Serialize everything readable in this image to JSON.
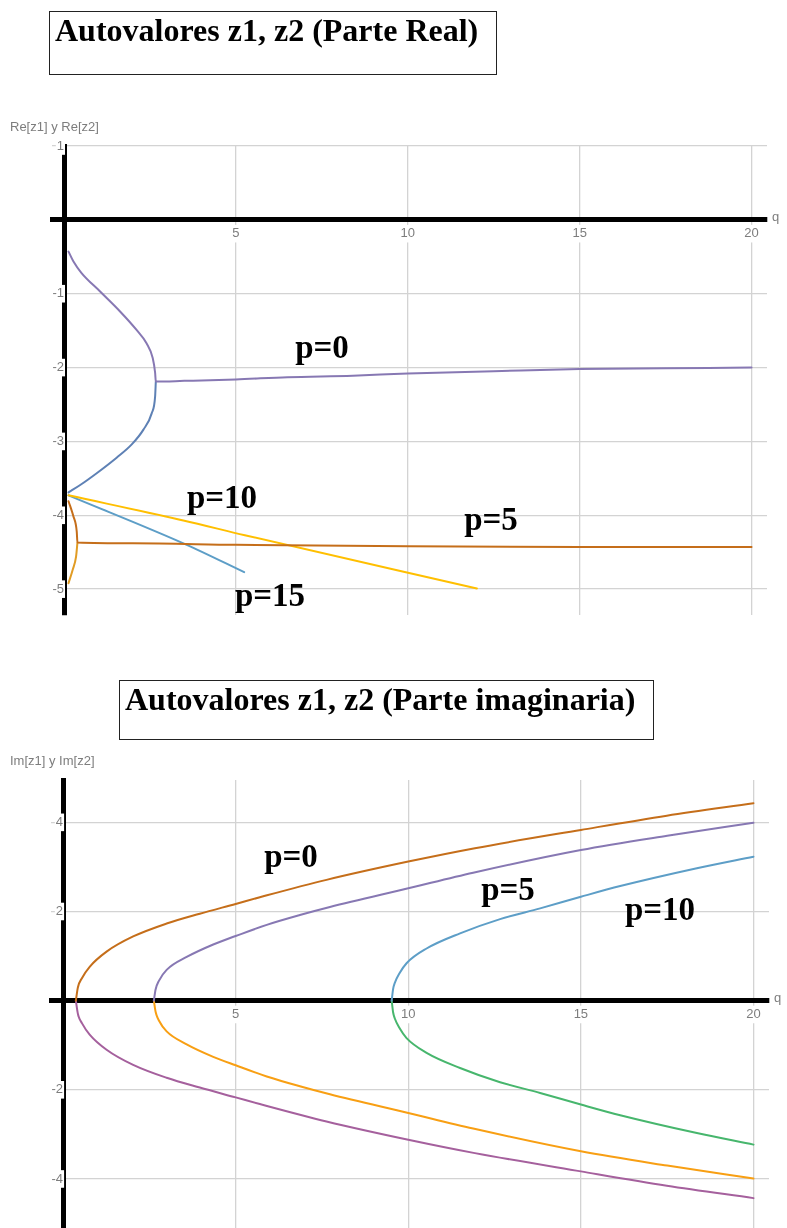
{
  "chart_data": [
    {
      "type": "line",
      "title": "Autovalores z1, z2 (Parte Real)",
      "xlabel": "q",
      "ylabel": "Re[z1] y Re[z2]",
      "xlim": [
        -0.35,
        20.45
      ],
      "ylim": [
        -5.35,
        1
      ],
      "xticks": [
        5,
        10,
        15,
        20
      ],
      "yticks": [
        -5,
        -4,
        -3,
        -2,
        -1,
        1
      ],
      "grid": true,
      "series": [
        {
          "color": "#8778b3",
          "x": [
            0.13,
            0.27,
            0.51,
            1.05,
            1.63,
            2.11,
            2.4,
            2.58,
            2.65,
            2.67,
            3.5,
            5,
            6.5,
            8.4,
            10,
            12.5,
            15,
            17.5,
            20
          ],
          "values": [
            -0.43,
            -0.56,
            -0.72,
            -0.97,
            -1.24,
            -1.49,
            -1.67,
            -1.87,
            -2.07,
            -2.19,
            -2.18,
            -2.16,
            -2.13,
            -2.11,
            -2.08,
            -2.05,
            -2.02,
            -2.01,
            -2.0
          ]
        },
        {
          "color": "#5e81b5",
          "x": [
            0.13,
            0.47,
            0.95,
            1.53,
            1.97,
            2.31,
            2.55,
            2.65,
            2.67
          ],
          "values": [
            -3.69,
            -3.59,
            -3.43,
            -3.22,
            -3.04,
            -2.84,
            -2.62,
            -2.39,
            -2.19
          ]
        },
        {
          "color": "#c56e1a",
          "x": [
            0.13,
            0.27,
            0.37,
            0.39,
            2,
            5,
            10,
            15,
            20
          ],
          "values": [
            -3.81,
            -4.01,
            -4.22,
            -4.37,
            -4.38,
            -4.4,
            -4.42,
            -4.43,
            -4.43
          ]
        },
        {
          "color": "#e19c24",
          "x": [
            0.13,
            0.25,
            0.35,
            0.39
          ],
          "values": [
            -4.92,
            -4.74,
            -4.56,
            -4.37
          ]
        },
        {
          "color": "#ffbf00",
          "x": [
            0.13,
            3.47,
            5.26,
            12.01
          ],
          "values": [
            -3.73,
            -4.07,
            -4.27,
            -4.99
          ]
        },
        {
          "color": "#5d9ec7",
          "x": [
            0.13,
            3.57,
            5.24
          ],
          "values": [
            -3.73,
            -4.4,
            -4.77
          ]
        }
      ],
      "annotations": [
        "p=0",
        "p=10",
        "p=5",
        "p=15"
      ]
    },
    {
      "type": "line",
      "title": "Autovalores z1, z2 (Parte imaginaria)",
      "xlabel": "q",
      "ylabel": "Im[z1] y Im[z2]",
      "xlim": [
        -0.35,
        20.45
      ],
      "ylim": [
        -5.1,
        4.95
      ],
      "xticks": [
        5,
        10,
        15,
        20
      ],
      "yticks": [
        -4,
        -2,
        2,
        4
      ],
      "grid": true,
      "series": [
        {
          "color": "#c56e1a",
          "x": [
            0.37,
            0.43,
            0.55,
            0.77,
            1.26,
            2.03,
            3.0,
            3.96,
            5.0,
            5.7,
            7.63,
            10,
            11.93,
            15,
            17.49,
            20
          ],
          "values": [
            0,
            0.3,
            0.51,
            0.76,
            1.1,
            1.44,
            1.73,
            1.95,
            2.17,
            2.32,
            2.71,
            3.12,
            3.42,
            3.83,
            4.15,
            4.43
          ]
        },
        {
          "color": "#a5609d",
          "x": [
            0.37,
            0.43,
            0.55,
            0.77,
            1.26,
            2.03,
            3.0,
            3.96,
            5.0,
            5.7,
            7.63,
            10,
            11.93,
            15,
            17.49,
            20
          ],
          "values": [
            0,
            -0.3,
            -0.51,
            -0.76,
            -1.1,
            -1.44,
            -1.73,
            -1.95,
            -2.17,
            -2.32,
            -2.71,
            -3.12,
            -3.42,
            -3.83,
            -4.15,
            -4.43
          ]
        },
        {
          "color": "#8778b3",
          "x": [
            2.63,
            2.68,
            2.78,
            3.0,
            3.58,
            4.35,
            5.0,
            5.9,
            6.86,
            7.73,
            10,
            11.88,
            15,
            17.5,
            20
          ],
          "values": [
            0,
            0.25,
            0.45,
            0.69,
            0.98,
            1.26,
            1.45,
            1.7,
            1.92,
            2.1,
            2.52,
            2.87,
            3.38,
            3.7,
            3.99
          ]
        },
        {
          "color": "#f89f13",
          "x": [
            2.63,
            2.68,
            2.78,
            3.0,
            3.58,
            4.35,
            5.0,
            5.9,
            6.86,
            7.73,
            10,
            11.88,
            15,
            17.5,
            20
          ],
          "values": [
            0,
            -0.25,
            -0.45,
            -0.69,
            -0.98,
            -1.26,
            -1.45,
            -1.7,
            -1.92,
            -2.1,
            -2.52,
            -2.87,
            -3.38,
            -3.7,
            -3.99
          ]
        },
        {
          "color": "#5d9ec7",
          "x": [
            9.52,
            9.56,
            9.61,
            9.75,
            9.95,
            10.53,
            11.5,
            12.66,
            13.82,
            15,
            16.14,
            18.36,
            20
          ],
          "values": [
            0,
            0.26,
            0.4,
            0.62,
            0.84,
            1.17,
            1.51,
            1.83,
            2.07,
            2.33,
            2.57,
            2.97,
            3.23
          ]
        },
        {
          "color": "#47b66d",
          "x": [
            9.52,
            9.56,
            9.61,
            9.75,
            9.95,
            10.53,
            11.5,
            12.66,
            13.82,
            15,
            16.14,
            18.36,
            20
          ],
          "values": [
            0,
            -0.26,
            -0.4,
            -0.62,
            -0.84,
            -1.17,
            -1.51,
            -1.83,
            -2.07,
            -2.33,
            -2.57,
            -2.97,
            -3.23
          ]
        }
      ],
      "annotations": [
        "p=0",
        "p=5",
        "p=10"
      ]
    }
  ]
}
